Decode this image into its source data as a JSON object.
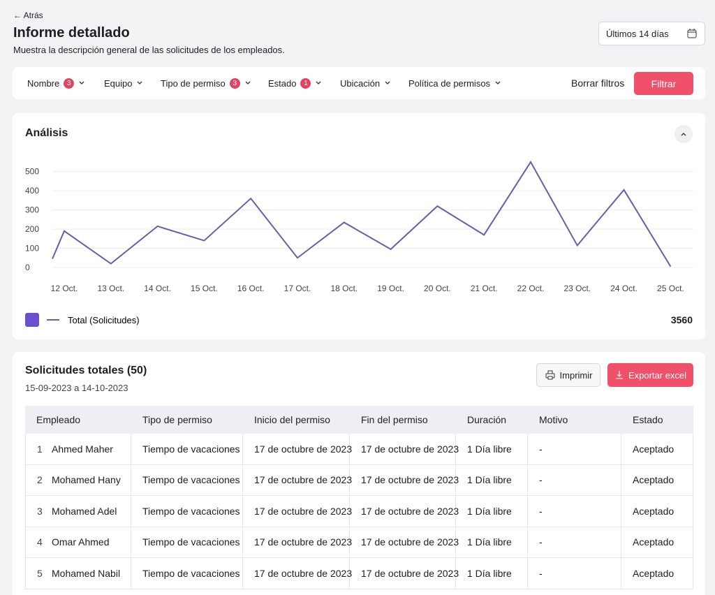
{
  "header": {
    "back": "← Atrás",
    "title": "Informe detallado",
    "subtitle": "Muestra la descripción general de las solicitudes de los empleados.",
    "date_range": "Últimos 14 días"
  },
  "filters": {
    "items": [
      {
        "label": "Nombre",
        "count": 3
      },
      {
        "label": "Equipo"
      },
      {
        "label": "Tipo de permiso",
        "count": 3
      },
      {
        "label": "Estado",
        "count": 1
      },
      {
        "label": "Ubicación"
      },
      {
        "label": "Política de permisos"
      }
    ],
    "clear": "Borrar filtros",
    "apply": "Filtrar"
  },
  "analysis": {
    "title": "Análisis",
    "total": 3560,
    "chart": {
      "type": "line",
      "categories": [
        null,
        "12 Oct.",
        "13 Oct.",
        "14 Oct.",
        "15 Oct.",
        "16 Oct.",
        "17 Oct.",
        "18 Oct.",
        "19 Oct.",
        "20 Oct.",
        "21 Oct.",
        "22 Oct.",
        "23 Oct.",
        "24 Oct.",
        "25 Oct."
      ],
      "series": [
        {
          "name": "Total (Solicitudes)",
          "color": "#6b5ba8",
          "values": [
            45,
            190,
            20,
            215,
            140,
            360,
            50,
            235,
            95,
            320,
            170,
            550,
            115,
            405,
            5
          ]
        }
      ],
      "ylim": [
        0,
        550
      ],
      "yticks": [
        0,
        100,
        200,
        300,
        400,
        500
      ],
      "grid": true
    }
  },
  "requests": {
    "title": "Solicitudes totales (50)",
    "period": "15-09-2023 a 14-10-2023",
    "print": "Imprimir",
    "export": "Exportar excel",
    "table": {
      "columns": [
        "Empleado",
        "Tipo de permiso",
        "Inicio del permiso",
        "Fin del permiso",
        "Duración",
        "Motivo",
        "Estado"
      ],
      "rows": [
        [
          "1",
          "Ahmed Maher",
          "Tiempo de vacaciones",
          "17 de octubre de 2023",
          "17 de octubre de 2023",
          "1 Día libre",
          "-",
          "Aceptado"
        ],
        [
          "2",
          "Mohamed Hany",
          "Tiempo de vacaciones",
          "17 de octubre de 2023",
          "17 de octubre de 2023",
          "1 Día libre",
          "-",
          "Aceptado"
        ],
        [
          "3",
          "Mohamed Adel",
          "Tiempo de vacaciones",
          "17 de octubre de 2023",
          "17 de octubre de 2023",
          "1 Día libre",
          "-",
          "Aceptado"
        ],
        [
          "4",
          "Omar Ahmed",
          "Tiempo de vacaciones",
          "17 de octubre de 2023",
          "17 de octubre de 2023",
          "1 Día libre",
          "-",
          "Aceptado"
        ],
        [
          "5",
          "Mohamed Nabil",
          "Tiempo de vacaciones",
          "17 de octubre de 2023",
          "17 de octubre de 2023",
          "1 Día libre",
          "-",
          "Aceptado"
        ]
      ]
    }
  }
}
